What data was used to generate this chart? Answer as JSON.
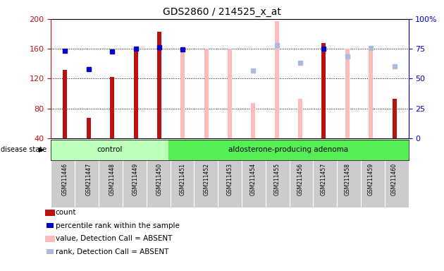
{
  "title": "GDS2860 / 214525_x_at",
  "samples": [
    "GSM211446",
    "GSM211447",
    "GSM211448",
    "GSM211449",
    "GSM211450",
    "GSM211451",
    "GSM211452",
    "GSM211453",
    "GSM211454",
    "GSM211455",
    "GSM211456",
    "GSM211457",
    "GSM211458",
    "GSM211459",
    "GSM211460"
  ],
  "n_control": 5,
  "n_adenoma": 10,
  "count_values": [
    132,
    67,
    122,
    160,
    183,
    null,
    null,
    null,
    null,
    null,
    null,
    168,
    null,
    null,
    93
  ],
  "count_absent": [
    null,
    null,
    null,
    null,
    null,
    160,
    160,
    160,
    87,
    197,
    93,
    null,
    160,
    160,
    null
  ],
  "rank_values": [
    157,
    133,
    156,
    160,
    162,
    159,
    null,
    null,
    null,
    null,
    null,
    160,
    null,
    null,
    null
  ],
  "rank_absent": [
    null,
    null,
    null,
    null,
    null,
    null,
    null,
    null,
    131,
    165,
    141,
    null,
    150,
    161,
    136
  ],
  "ylim_left": [
    40,
    200
  ],
  "ylim_right": [
    0,
    100
  ],
  "yticks_left": [
    40,
    80,
    120,
    160,
    200
  ],
  "yticks_right": [
    0,
    25,
    50,
    75,
    100
  ],
  "bar_color_red": "#bb1111",
  "bar_color_pink": "#ffbbbb",
  "dot_color_blue": "#0000cc",
  "dot_color_lightblue": "#aabbdd",
  "color_control": "#bbffbb",
  "color_adenoma": "#55ee55",
  "color_gray_strip": "#cccccc",
  "bar_width": 0.18
}
